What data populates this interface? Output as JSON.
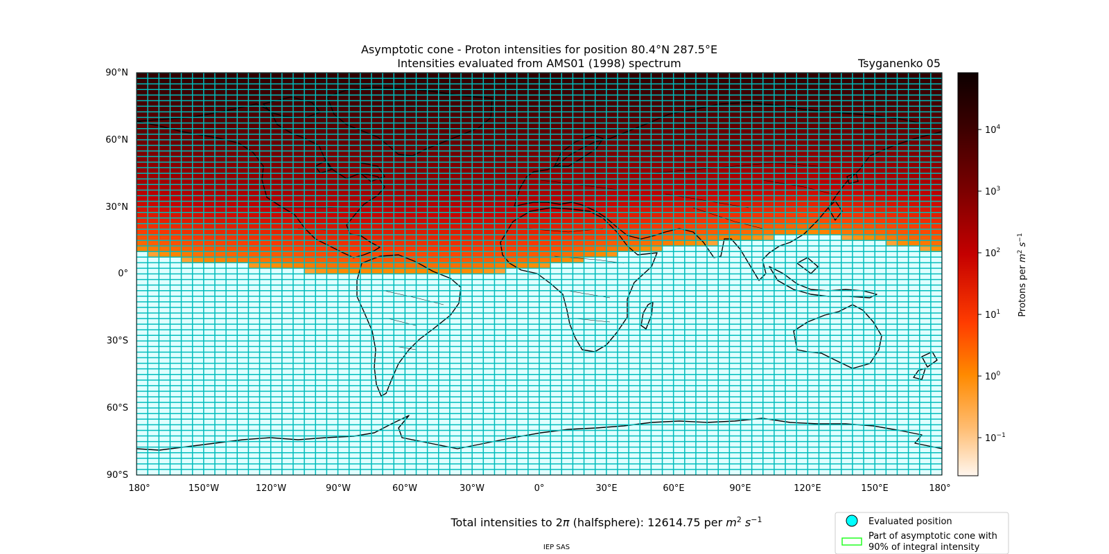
{
  "title_line1": "Asymptotic cone - Proton intensities for position 80.4°N 287.5°E",
  "title_line2": "Intensities evaluated from AMS01 (1998) spectrum",
  "model_label": "Tsyganenko 05",
  "lat_labels": [
    "90°N",
    "60°N",
    "30°N",
    "0°",
    "30°S",
    "60°S",
    "90°S"
  ],
  "lon_labels": [
    "180°",
    "150°W",
    "120°W",
    "90°W",
    "60°W",
    "30°W",
    "0°",
    "30°E",
    "60°E",
    "90°E",
    "120°E",
    "150°E",
    "180°"
  ],
  "colorbar": {
    "label_base": "Protons per ",
    "label_unit_m": "m",
    "label_unit_m_exp": "2",
    "label_unit_s": " s",
    "label_unit_s_exp": "−1",
    "tick_base": "10",
    "tick_exponents": [
      "4",
      "3",
      "2",
      "1",
      "0",
      "−1"
    ],
    "colors": [
      "#0d0000",
      "#3d0000",
      "#7a0000",
      "#c40000",
      "#ff3c00",
      "#ff8a00",
      "#ffbc70",
      "#fff6ee"
    ]
  },
  "total": {
    "prefix": "Total intensities to 2",
    "pi": "π",
    "middle": " (halfsphere): 12614.75 per ",
    "unit_m": "m",
    "unit_m_exp": "2",
    "unit_s": " s",
    "unit_s_exp": "−1"
  },
  "legend": {
    "evaluated": "Evaluated position",
    "cone_line1": "Part of asymptotic cone with",
    "cone_line2": "90% of integral intensity"
  },
  "footer": "IEP SAS",
  "map_colors": {
    "grid": "#00bcbc",
    "cyan": "#00ffff",
    "no_access": "#e0ffff",
    "legend_green": "#22ff22"
  },
  "chart_data": {
    "type": "heatmap",
    "title": "Asymptotic cone - Proton intensities for position 80.4°N 287.5°E",
    "subtitle": "Intensities evaluated from AMS01 (1998) spectrum",
    "xlabel": "",
    "ylabel": "",
    "xlim": [
      -180,
      180
    ],
    "ylim": [
      -90,
      90
    ],
    "cell_size_deg": {
      "lon": 5,
      "lat": 2.5
    },
    "colorbar_scale": "log",
    "colorbar_range": [
      0.025,
      80000
    ],
    "colorbar_label": "Protons per m^2 s^-1",
    "accessible_region": "intensity grows toward the north; cells south of the cutoff latitude carry no accessible intensity",
    "cutoff_latitude_by_lon": {
      "lon": [
        -180,
        -150,
        -120,
        -90,
        -60,
        -30,
        0,
        30,
        60,
        90,
        120,
        150,
        180
      ],
      "lat": [
        10,
        5,
        3,
        0,
        0,
        0,
        3,
        8,
        12,
        15,
        18,
        15,
        10
      ]
    },
    "grid": true,
    "legend_position": "bottom-right",
    "legend": [
      "Evaluated position",
      "Part of asymptotic cone with 90% of integral intensity"
    ],
    "total_intensity": 12614.75
  }
}
